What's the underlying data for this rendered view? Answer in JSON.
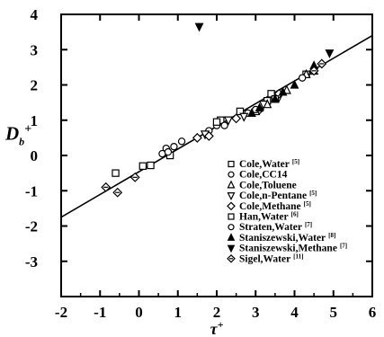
{
  "chart_data": {
    "type": "scatter",
    "xlabel": "τ",
    "xlabel_sup": "+",
    "ylabel": "D",
    "ylabel_sub": "b",
    "ylabel_sup": "+",
    "xlim": [
      -2,
      6
    ],
    "ylim": [
      -4,
      4
    ],
    "x_ticks": [
      -2,
      -1,
      0,
      1,
      2,
      3,
      4,
      5,
      6
    ],
    "y_ticks": [
      -3,
      -2,
      -1,
      0,
      1,
      2,
      3,
      4
    ],
    "x_tick_labels": [
      "-2",
      "-1",
      "0",
      "1",
      "2",
      "3",
      "4",
      "5",
      "6"
    ],
    "y_tick_labels": [
      "-3",
      "-2",
      "-1",
      "0",
      "1",
      "2",
      "3",
      "4"
    ],
    "grid": false,
    "legend_position": "lower-right",
    "fit_line": {
      "x": [
        -2,
        6
      ],
      "y": [
        -1.75,
        3.4
      ]
    },
    "series": [
      {
        "name": "Cole,Water",
        "ref": "[5]",
        "marker": "square-open",
        "points": [
          [
            -0.6,
            -0.5
          ],
          [
            2.1,
            1.0
          ],
          [
            2.6,
            1.25
          ],
          [
            3.3,
            1.55
          ],
          [
            3.4,
            1.75
          ],
          [
            4.3,
            2.3
          ]
        ]
      },
      {
        "name": "Cole,CC14",
        "ref": "",
        "marker": "circle-open",
        "points": [
          [
            0.7,
            0.2
          ],
          [
            0.9,
            0.25
          ],
          [
            1.1,
            0.4
          ],
          [
            1.8,
            0.7
          ],
          [
            2.0,
            0.85
          ],
          [
            2.8,
            1.2
          ]
        ]
      },
      {
        "name": "Cole,Toluene",
        "ref": "",
        "marker": "triangle-up-open",
        "points": [
          [
            3.0,
            1.25
          ],
          [
            3.3,
            1.45
          ],
          [
            3.8,
            1.85
          ],
          [
            4.3,
            2.3
          ],
          [
            4.5,
            2.4
          ]
        ]
      },
      {
        "name": "Cole,n-Pentane",
        "ref": "[5]",
        "marker": "triangle-down-open",
        "points": [
          [
            1.7,
            0.6
          ],
          [
            2.3,
            1.0
          ],
          [
            2.7,
            1.1
          ],
          [
            3.2,
            1.45
          ],
          [
            3.6,
            1.65
          ]
        ]
      },
      {
        "name": "Cole,Methane",
        "ref": "[5]",
        "marker": "diamond-open",
        "points": [
          [
            1.5,
            0.5
          ],
          [
            1.8,
            0.55
          ],
          [
            2.5,
            1.05
          ],
          [
            3.1,
            1.3
          ],
          [
            3.6,
            1.75
          ]
        ]
      },
      {
        "name": "Han,Water",
        "ref": "[6]",
        "marker": "square-open",
        "points": [
          [
            0.1,
            -0.3
          ],
          [
            0.3,
            -0.28
          ],
          [
            0.8,
            0.0
          ],
          [
            2.0,
            0.95
          ],
          [
            3.5,
            1.6
          ]
        ]
      },
      {
        "name": "Straten,Water",
        "ref": "[7]",
        "marker": "circle-open",
        "points": [
          [
            0.6,
            0.05
          ],
          [
            0.75,
            0.1
          ],
          [
            2.2,
            0.85
          ],
          [
            3.0,
            1.3
          ],
          [
            4.2,
            2.2
          ]
        ]
      },
      {
        "name": "Staniszewski,Water",
        "ref": "[8]",
        "marker": "triangle-up-filled",
        "points": [
          [
            2.9,
            1.2
          ],
          [
            3.1,
            1.35
          ],
          [
            3.5,
            1.6
          ],
          [
            3.7,
            1.8
          ],
          [
            4.0,
            2.0
          ],
          [
            4.5,
            2.55
          ]
        ]
      },
      {
        "name": "Staniszewski,Methane",
        "ref": "[7]",
        "marker": "triangle-down-filled",
        "points": [
          [
            1.55,
            3.65
          ],
          [
            4.9,
            2.9
          ]
        ]
      },
      {
        "name": "Sigel,Water",
        "ref": "[11]",
        "marker": "diamond-pattern",
        "points": [
          [
            -0.85,
            -0.9
          ],
          [
            -0.55,
            -1.05
          ],
          [
            -0.1,
            -0.62
          ],
          [
            4.5,
            2.4
          ],
          [
            4.7,
            2.6
          ]
        ]
      }
    ]
  }
}
